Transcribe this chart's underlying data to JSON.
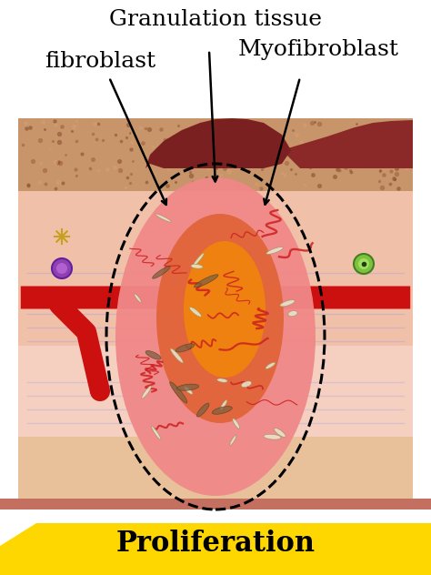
{
  "title": "Proliferation",
  "label_granulation": "Granulation tissue",
  "label_fibroblast": "fibroblast",
  "label_myofibroblast": "Myofibroblast",
  "bg_color": "#ffffff",
  "skin_outer_color": "#d4956a",
  "skin_mid_color": "#e8b89a",
  "skin_inner_color": "#f5d5c5",
  "dermis_color": "#f0c8b0",
  "granulation_outer": "#f08090",
  "granulation_inner": "#e86070",
  "vessel_orange": "#f07820",
  "vessel_red": "#cc1010",
  "blood_vessel_red": "#cc1010",
  "scab_color": "#8B3030",
  "bottom_yellow": "#FFD700",
  "bottom_bar_color": "#c47060",
  "arrow_color": "#000000",
  "dashed_ellipse_color": "#000000",
  "proliferation_fontsize": 22,
  "label_fontsize": 18
}
